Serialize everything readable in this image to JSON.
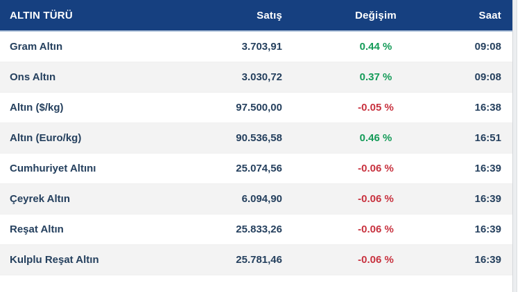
{
  "table": {
    "columns": [
      {
        "label": "ALTIN TÜRÜ",
        "align": "left"
      },
      {
        "label": "Satış",
        "align": "right"
      },
      {
        "label": "Değişim",
        "align": "center"
      },
      {
        "label": "Saat",
        "align": "right"
      }
    ],
    "rows": [
      {
        "type": "Gram Altın",
        "satis": "3.703,91",
        "degisim": "0.44 %",
        "trend": "up",
        "saat": "09:08"
      },
      {
        "type": "Ons Altın",
        "satis": "3.030,72",
        "degisim": "0.37 %",
        "trend": "up",
        "saat": "09:08"
      },
      {
        "type": "Altın ($/kg)",
        "satis": "97.500,00",
        "degisim": "-0.05 %",
        "trend": "down",
        "saat": "16:38"
      },
      {
        "type": "Altın (Euro/kg)",
        "satis": "90.536,58",
        "degisim": "0.46 %",
        "trend": "up",
        "saat": "16:51"
      },
      {
        "type": "Cumhuriyet Altını",
        "satis": "25.074,56",
        "degisim": "-0.06 %",
        "trend": "down",
        "saat": "16:39"
      },
      {
        "type": "Çeyrek Altın",
        "satis": "6.094,90",
        "degisim": "-0.06 %",
        "trend": "down",
        "saat": "16:39"
      },
      {
        "type": "Reşat Altın",
        "satis": "25.833,26",
        "degisim": "-0.06 %",
        "trend": "down",
        "saat": "16:39"
      },
      {
        "type": "Kulplu Reşat Altın",
        "satis": "25.781,46",
        "degisim": "-0.06 %",
        "trend": "down",
        "saat": "16:39"
      }
    ],
    "colors": {
      "header_bg": "#164080",
      "text": "#25405e",
      "positive": "#149b58",
      "negative": "#c8323f",
      "row_alt_bg": "#f3f3f3"
    }
  }
}
